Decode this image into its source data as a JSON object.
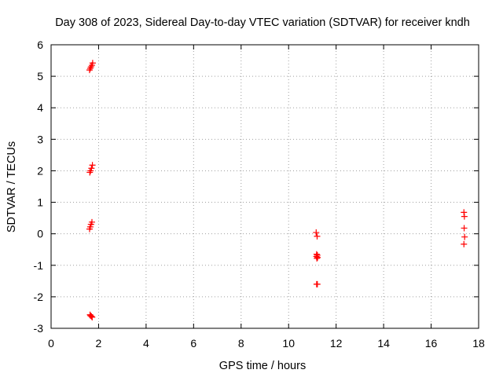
{
  "chart_data": {
    "type": "scatter",
    "title": "Day 308 of 2023, Sidereal Day-to-day VTEC variation (SDTVAR) for receiver kndh",
    "xlabel": "GPS time / hours",
    "ylabel": "SDTVAR / TECUs",
    "xlim": [
      0,
      18
    ],
    "ylim": [
      -3,
      6
    ],
    "xticks": [
      0,
      2,
      4,
      6,
      8,
      10,
      12,
      14,
      16,
      18
    ],
    "yticks": [
      -3,
      -2,
      -1,
      0,
      1,
      2,
      3,
      4,
      5,
      6
    ],
    "grid": true,
    "marker": "+",
    "marker_color": "#ff0000",
    "series": [
      {
        "name": "SDTVAR",
        "x": [
          1.62,
          1.65,
          1.68,
          1.72,
          1.75,
          1.63,
          1.66,
          1.7,
          1.74,
          1.62,
          1.65,
          1.68,
          1.72,
          1.64,
          1.66,
          1.7,
          1.73,
          11.16,
          11.2,
          11.18,
          11.21,
          11.17,
          11.22,
          11.19,
          11.18,
          11.21,
          17.38,
          17.4,
          17.39,
          17.41,
          17.38
        ],
        "y": [
          5.2,
          5.25,
          5.3,
          5.35,
          5.42,
          1.95,
          2.0,
          2.08,
          2.18,
          0.15,
          0.22,
          0.3,
          0.37,
          -2.57,
          -2.6,
          -2.62,
          -2.65,
          0.04,
          -0.08,
          -0.65,
          -0.68,
          -0.72,
          -0.75,
          -0.78,
          -1.6,
          -1.6,
          0.68,
          0.55,
          0.18,
          -0.1,
          -0.33
        ]
      }
    ]
  }
}
